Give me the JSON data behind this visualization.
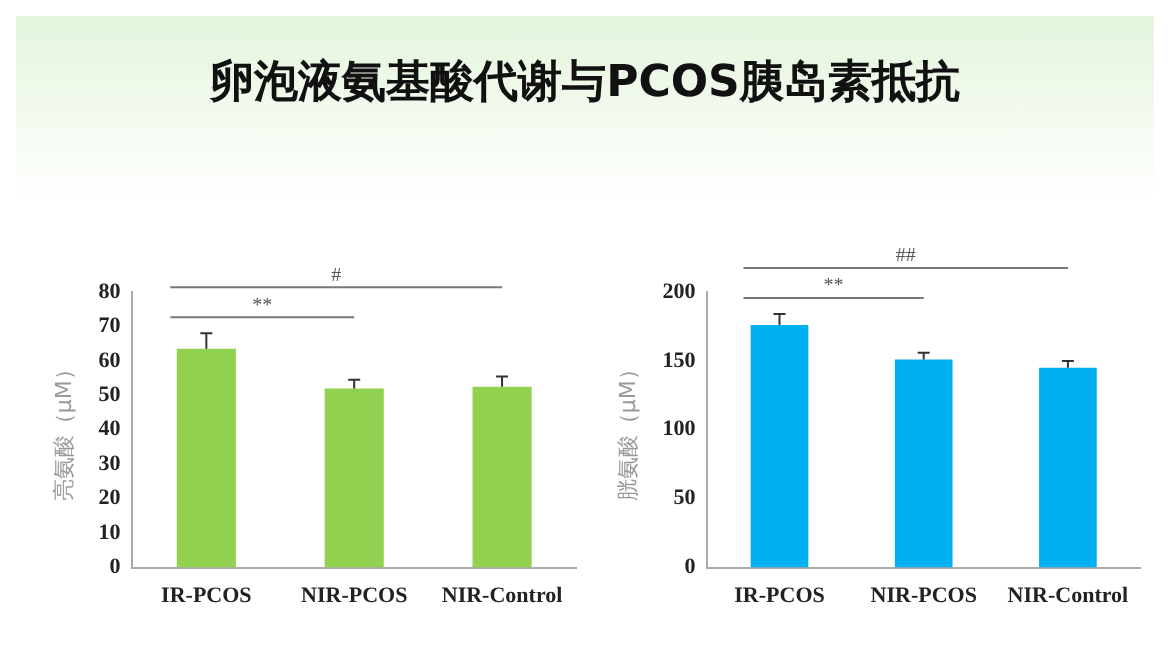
{
  "chart_data": [
    {
      "type": "bar",
      "title": "卵泡液氨基酸代谢与PCOS胰岛素抵抗",
      "ylabel": "亮氨酸（μM）",
      "categories": [
        "IR-PCOS",
        "NIR-PCOS",
        "NIR-Control"
      ],
      "values": [
        63.5,
        52,
        52.5
      ],
      "errors": [
        4.5,
        2.5,
        3
      ],
      "color": "#92d050",
      "ylim": [
        0,
        80
      ],
      "yticks": [
        0,
        10,
        20,
        30,
        40,
        50,
        60,
        70,
        80
      ],
      "grid": false,
      "legend": false,
      "annotations": [
        "**",
        "#"
      ]
    },
    {
      "type": "bar",
      "ylabel": "胱氨酸（μM）",
      "categories": [
        "IR-PCOS",
        "NIR-PCOS",
        "NIR-Control"
      ],
      "values": [
        176,
        151,
        145
      ],
      "errors": [
        8,
        5,
        5
      ],
      "color": "#00b0f0",
      "ylim": [
        0,
        200
      ],
      "yticks": [
        0,
        50,
        100,
        150,
        200
      ],
      "grid": false,
      "legend": false,
      "annotations": [
        "**",
        "##"
      ]
    }
  ]
}
